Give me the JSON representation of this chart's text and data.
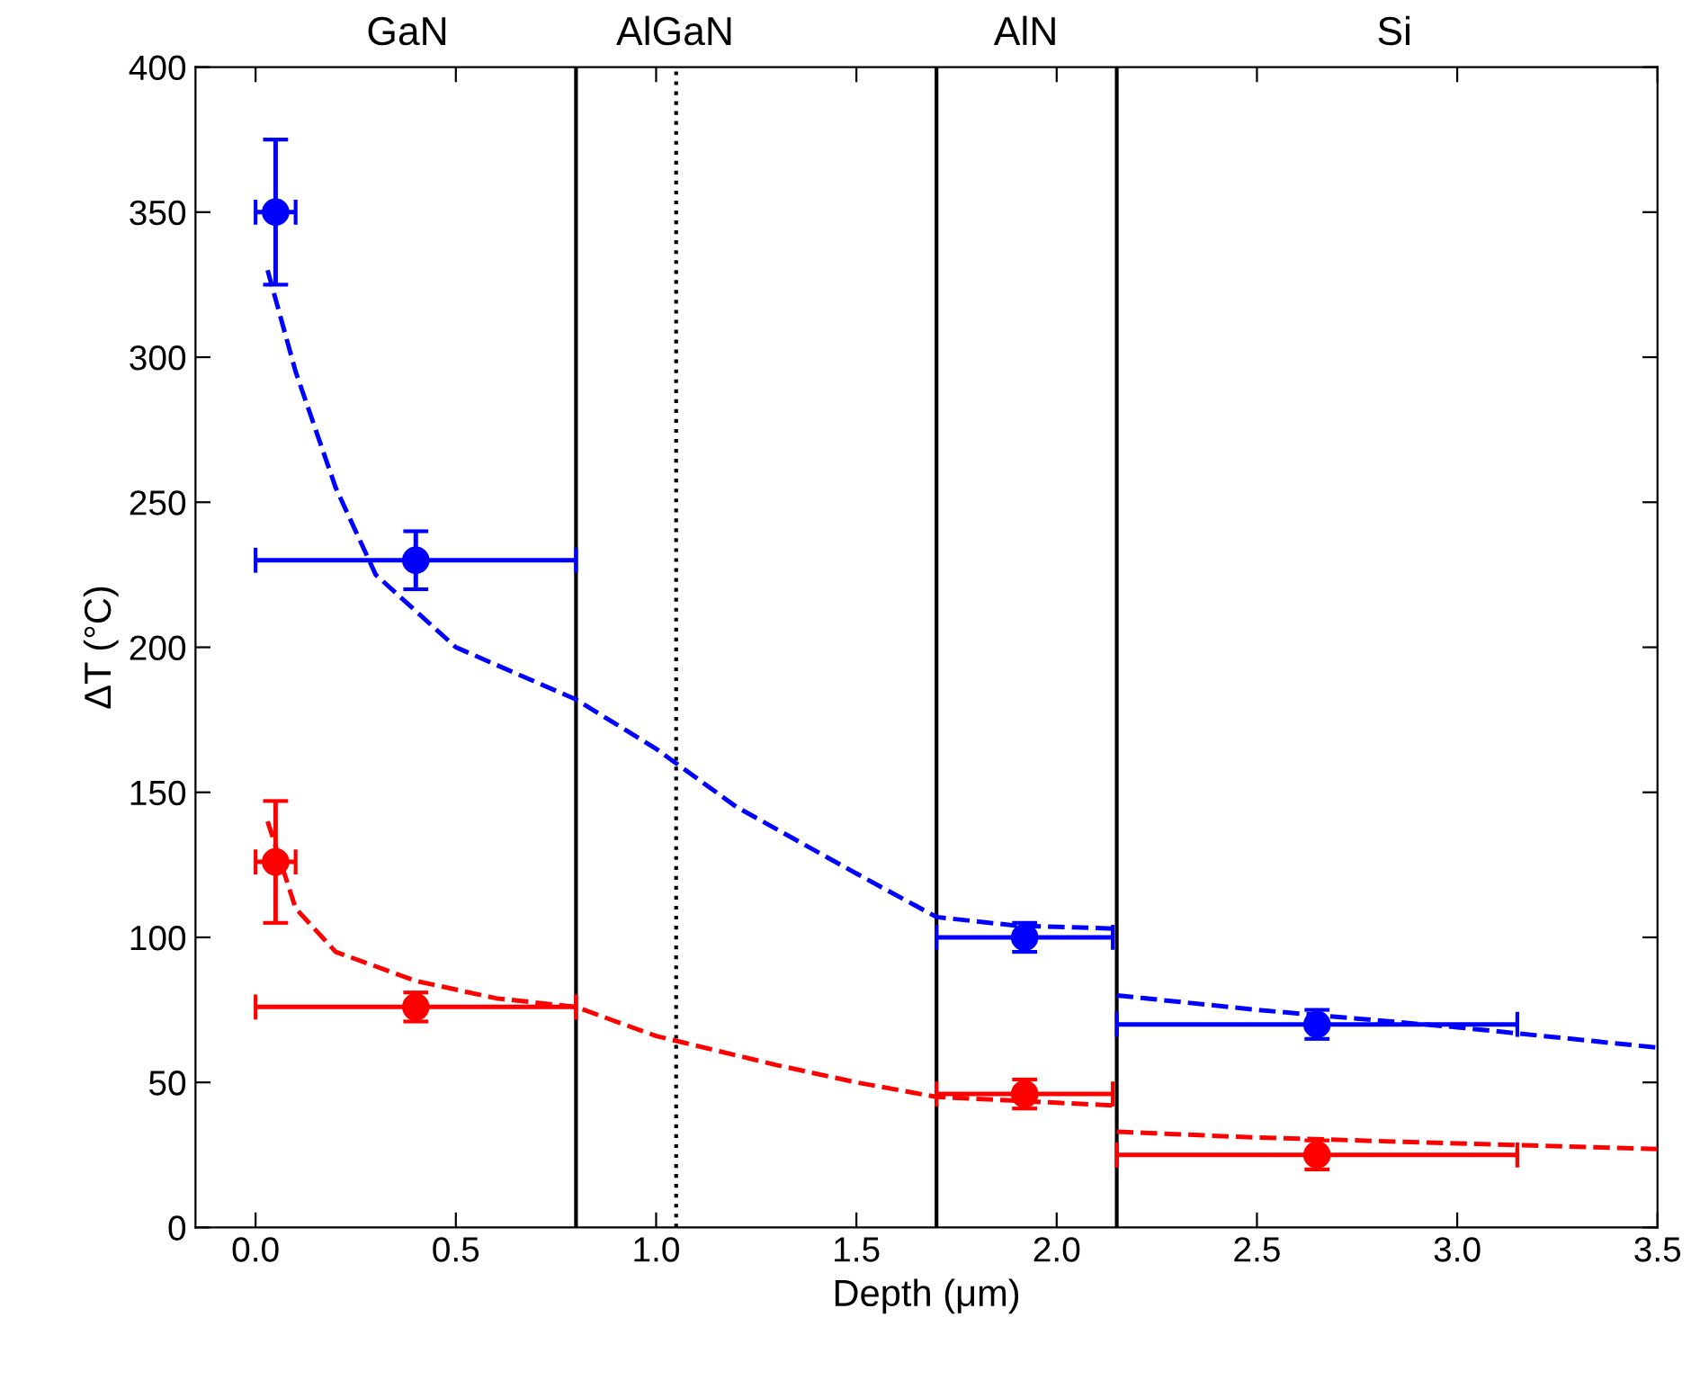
{
  "chart_data": {
    "type": "scatter",
    "xlabel": "Depth (μm)",
    "ylabel": "ΔT (°C)",
    "xlim": [
      -0.15,
      3.5
    ],
    "ylim": [
      0,
      400
    ],
    "xticks": [
      {
        "value": 0,
        "label": "0.0"
      },
      0.5,
      {
        "value": 1,
        "label": "1.0"
      },
      1.5,
      {
        "value": 2,
        "label": "2.0"
      },
      2.5,
      {
        "value": 3,
        "label": "3.0"
      },
      3.5
    ],
    "yticks": [
      0,
      50,
      100,
      150,
      200,
      250,
      300,
      350,
      400
    ],
    "grid": false,
    "series": [
      {
        "marker": "circle",
        "color": "#0000ff",
        "x": [
          0.05,
          0.4,
          1.92,
          2.65
        ],
        "values": [
          350,
          230,
          100,
          70
        ],
        "errors": [
          25,
          10,
          5,
          5
        ],
        "xerrors": [
          0.05,
          0.4,
          0.22,
          0.5
        ]
      },
      {
        "marker": "circle",
        "color": "#ff0000",
        "x": [
          0.05,
          0.4,
          1.92,
          2.65
        ],
        "values": [
          126,
          76,
          46,
          25
        ],
        "errors": [
          21,
          5,
          5,
          5
        ],
        "xerrors": [
          0.05,
          0.4,
          0.22,
          0.5
        ]
      },
      {
        "type": "line",
        "line_style": "dashed",
        "color": "#0000ff",
        "x": [
          0.03,
          0.1,
          0.2,
          0.3,
          0.5,
          0.8,
          1.0,
          1.2,
          1.5,
          1.7,
          1.9,
          2.15
        ],
        "values": [
          330,
          295,
          255,
          225,
          200,
          182,
          165,
          145,
          122,
          107,
          104,
          103
        ]
      },
      {
        "type": "line",
        "line_style": "dashed",
        "color": "#0000ff",
        "x": [
          2.15,
          2.5,
          3.0,
          3.5
        ],
        "values": [
          80,
          75,
          69,
          62
        ]
      },
      {
        "type": "line",
        "line_style": "dashed",
        "color": "#ff0000",
        "x": [
          0.03,
          0.1,
          0.2,
          0.4,
          0.6,
          0.8,
          1.0,
          1.3,
          1.5,
          1.7,
          2.0,
          2.15
        ],
        "values": [
          140,
          110,
          95,
          85,
          79,
          76,
          66,
          56,
          50,
          45,
          43,
          42
        ]
      },
      {
        "type": "line",
        "line_style": "dashed",
        "color": "#ff0000",
        "x": [
          2.15,
          2.5,
          3.0,
          3.5
        ],
        "values": [
          33,
          31,
          29,
          27
        ]
      }
    ],
    "ref_lines": [
      {
        "axis": "x",
        "value": 0.8,
        "color": "#000000",
        "line_style": "solid"
      },
      {
        "axis": "x",
        "value": 1.05,
        "color": "#000000",
        "line_style": "dotted"
      },
      {
        "axis": "x",
        "value": 1.7,
        "color": "#000000",
        "line_style": "solid"
      },
      {
        "axis": "x",
        "value": 2.15,
        "color": "#000000",
        "line_style": "solid"
      }
    ],
    "annotations": [
      "GaN",
      "AlGaN",
      "AlN",
      "Si"
    ]
  }
}
